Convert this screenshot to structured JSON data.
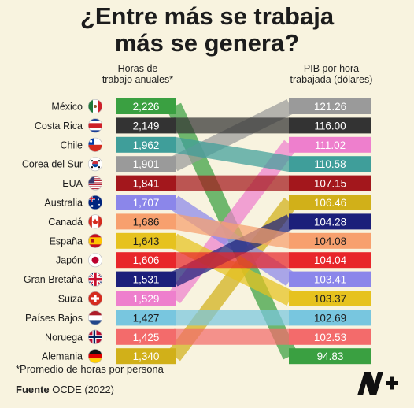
{
  "title_line1": "¿Entre más se trabaja",
  "title_line2": "más se genera?",
  "hours_header": [
    "Horas de",
    "trabajo anuales*"
  ],
  "gdp_header": [
    "PIB por hora",
    "trabajada (dólares)"
  ],
  "footnote": "*Promedio de horas por persona",
  "source_label": "Fuente",
  "source_value": "OCDE (2022)",
  "logo_text": "N+",
  "chart_data": {
    "type": "table",
    "left_column": "hours",
    "right_column": "gdp_per_hour",
    "rows": [
      {
        "country": "México",
        "hours": "2,226",
        "hours_color": "#3aa041",
        "flag": "mexico"
      },
      {
        "country": "Costa Rica",
        "hours": "2,149",
        "hours_color": "#333333",
        "flag": "costa-rica"
      },
      {
        "country": "Chile",
        "hours": "1,962",
        "hours_color": "#3f9e9a",
        "flag": "chile"
      },
      {
        "country": "Corea del Sur",
        "hours": "1,901",
        "hours_color": "#9a9a9a",
        "flag": "south-korea"
      },
      {
        "country": "EUA",
        "hours": "1,841",
        "hours_color": "#a3171c",
        "flag": "usa"
      },
      {
        "country": "Australia",
        "hours": "1,707",
        "hours_color": "#8b86ea",
        "flag": "australia"
      },
      {
        "country": "Canadá",
        "hours": "1,686",
        "hours_color": "#f7a06e",
        "flag": "canada"
      },
      {
        "country": "España",
        "hours": "1,643",
        "hours_color": "#e6c21e",
        "flag": "spain"
      },
      {
        "country": "Japón",
        "hours": "1,606",
        "hours_color": "#e8262a",
        "flag": "japan"
      },
      {
        "country": "Gran Bretaña",
        "hours": "1,531",
        "hours_color": "#1c1f7a",
        "flag": "uk"
      },
      {
        "country": "Suiza",
        "hours": "1,529",
        "hours_color": "#ee7fcd",
        "flag": "switzerland"
      },
      {
        "country": "Países Bajos",
        "hours": "1,427",
        "hours_color": "#78c6df",
        "flag": "netherlands"
      },
      {
        "country": "Noruega",
        "hours": "1,425",
        "hours_color": "#f36b6b",
        "flag": "norway"
      },
      {
        "country": "Alemania",
        "hours": "1,340",
        "hours_color": "#d1b019",
        "flag": "germany"
      }
    ],
    "gdp_per_hour": [
      {
        "value": "121.26",
        "color": "#9a9a9a",
        "country": "Corea del Sur"
      },
      {
        "value": "116.00",
        "color": "#333333",
        "country": "Costa Rica"
      },
      {
        "value": "111.02",
        "color": "#ee7fcd",
        "country": "Suiza"
      },
      {
        "value": "110.58",
        "color": "#3f9e9a",
        "country": "Chile"
      },
      {
        "value": "107.15",
        "color": "#a3171c",
        "country": "EUA"
      },
      {
        "value": "106.46",
        "color": "#d1b019",
        "country": "Alemania"
      },
      {
        "value": "104.28",
        "color": "#1c1f7a",
        "country": "Gran Bretaña"
      },
      {
        "value": "104.08",
        "color": "#f7a06e",
        "country": "Canadá"
      },
      {
        "value": "104.04",
        "color": "#e8262a",
        "country": "Japón"
      },
      {
        "value": "103.41",
        "color": "#8b86ea",
        "country": "Australia"
      },
      {
        "value": "103.37",
        "color": "#e6c21e",
        "country": "España"
      },
      {
        "value": "102.69",
        "color": "#78c6df",
        "country": "Países Bajos"
      },
      {
        "value": "102.53",
        "color": "#f36b6b",
        "country": "Noruega"
      },
      {
        "value": "94.83",
        "color": "#3aa041",
        "country": "México"
      }
    ]
  }
}
